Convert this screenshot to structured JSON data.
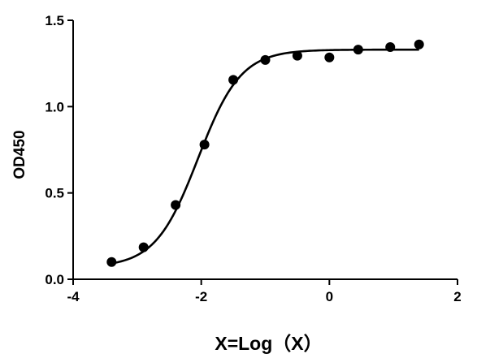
{
  "chart_data": {
    "type": "scatter",
    "title": "",
    "xlabel": "X=Log（X）",
    "ylabel": "OD450",
    "xlim": [
      -4,
      2
    ],
    "ylim": [
      0,
      1.5
    ],
    "x_ticks": [
      -4,
      -2,
      0,
      2
    ],
    "x_tick_labels": [
      "-4",
      "-2",
      "0",
      "2"
    ],
    "y_ticks": [
      0,
      0.5,
      1.0,
      1.5
    ],
    "y_tick_labels": [
      "0.0",
      "0.5",
      "1.0",
      "1.5"
    ],
    "grid": false,
    "legend": "none",
    "series": [
      {
        "x": [
          -3.4,
          -2.9,
          -2.4,
          -1.95,
          -1.5,
          -1.0,
          -0.5,
          0.0,
          0.45,
          0.95,
          1.4
        ],
        "y": [
          0.1,
          0.185,
          0.43,
          0.78,
          1.155,
          1.27,
          1.295,
          1.285,
          1.33,
          1.345,
          1.36
        ],
        "color": "#000000"
      }
    ],
    "fit_curve": {
      "type": "sigmoid",
      "bottom": 0.07,
      "top": 1.33,
      "log_ec50": -2.05,
      "hill_slope": 1.3,
      "x_range": [
        -3.4,
        1.4
      ],
      "color": "#000000"
    }
  }
}
